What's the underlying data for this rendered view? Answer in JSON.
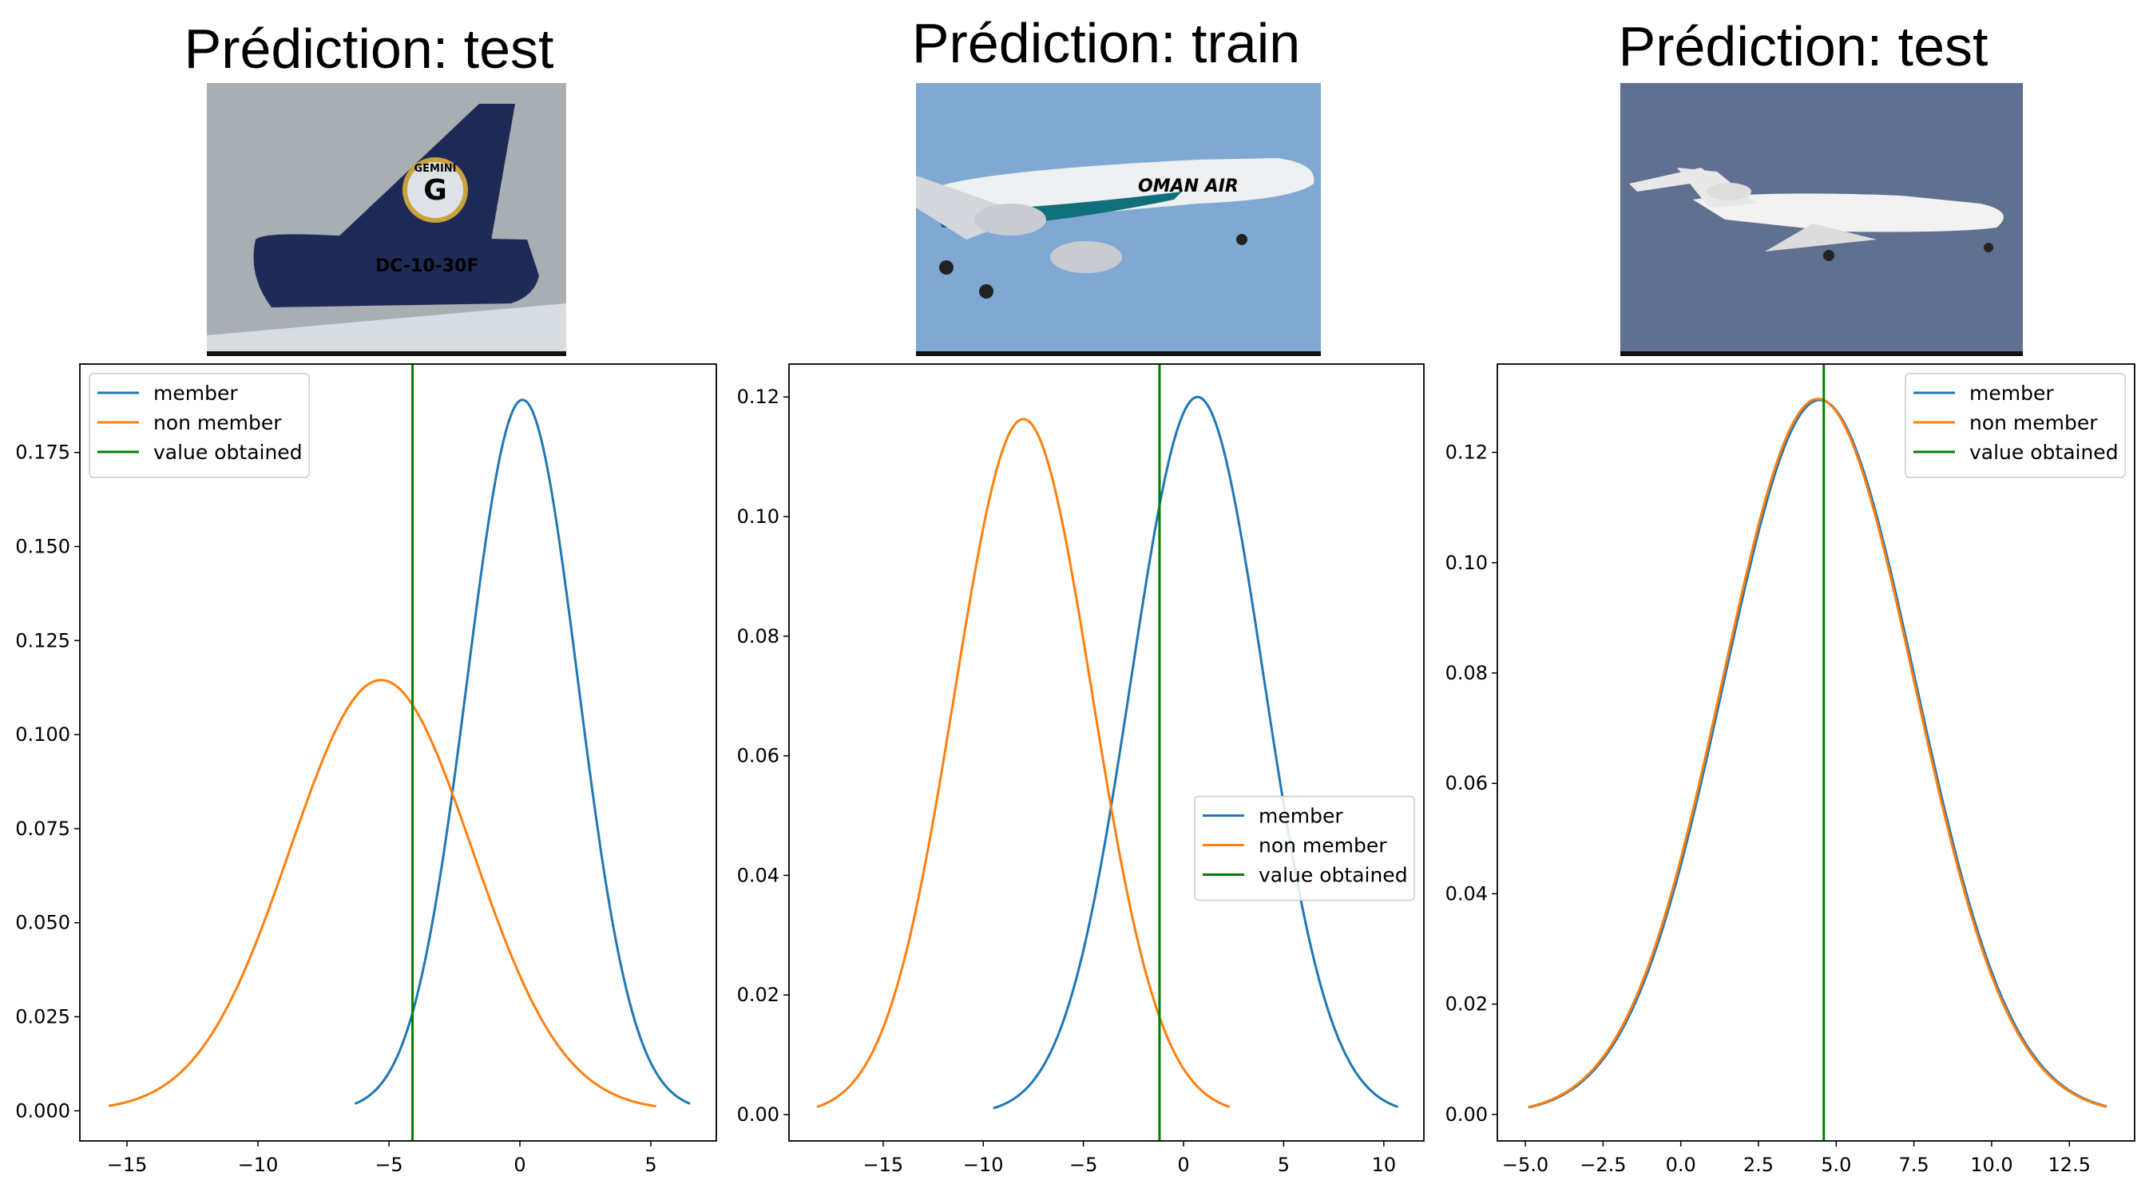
{
  "colors": {
    "member": "#1f77b4",
    "non_member": "#ff7f0e",
    "value_obtained": "#008000"
  },
  "panels": [
    {
      "title": "Prédiction: test",
      "image": {
        "scene": "grey-sky-cargo-tail",
        "logo_text": [
          "GEMINI",
          "DC-10-30F"
        ],
        "colors": {
          "bg": "#a9aeb3",
          "tail": "#1e2a55"
        }
      }
    },
    {
      "title": "Prédiction: train",
      "image": {
        "scene": "blue-sky-airliner",
        "logo_text": [
          "OMAN AIR"
        ],
        "colors": {
          "bg": "#7fa9d3",
          "body": "#eef0f2"
        }
      }
    },
    {
      "title": "Prédiction: test",
      "image": {
        "scene": "slate-sky-business-jet",
        "logo_text": [],
        "colors": {
          "bg": "#5f7090",
          "body": "#f2f2f2"
        }
      }
    }
  ],
  "chart_data": [
    {
      "type": "line",
      "legend_placement": "upper left",
      "xlim": [
        -16.8,
        7.5
      ],
      "ylim": [
        -0.008,
        0.1985
      ],
      "xticks": [
        -15,
        -10,
        -5,
        0,
        5
      ],
      "xtick_labels": [
        "−15",
        "−10",
        "−5",
        "0",
        "5"
      ],
      "yticks": [
        0,
        0.025,
        0.05,
        0.075,
        0.1,
        0.125,
        0.15,
        0.175
      ],
      "ytick_labels": [
        "0.000",
        "0.025",
        "0.050",
        "0.075",
        "0.100",
        "0.125",
        "0.150",
        "0.175"
      ],
      "series": [
        {
          "name": "member",
          "kind": "normal-pdf",
          "mean": 0.1,
          "std": 2.11,
          "x_range": [
            -6.3,
            6.5
          ],
          "peak": 0.189
        },
        {
          "name": "non member",
          "kind": "normal-pdf",
          "mean": -5.3,
          "std": 3.48,
          "x_range": [
            -15.7,
            5.2
          ],
          "peak": 0.1145
        },
        {
          "name": "value obtained",
          "kind": "vline",
          "x": -4.1
        }
      ]
    },
    {
      "type": "line",
      "legend_placement": "center right",
      "xlim": [
        -19.7,
        12.0
      ],
      "ylim": [
        -0.0044,
        0.1255
      ],
      "xticks": [
        -15,
        -10,
        -5,
        0,
        5,
        10
      ],
      "xtick_labels": [
        "−15",
        "−10",
        "−5",
        "0",
        "5",
        "10"
      ],
      "yticks": [
        0,
        0.02,
        0.04,
        0.06,
        0.08,
        0.1,
        0.12
      ],
      "ytick_labels": [
        "0.00",
        "0.02",
        "0.04",
        "0.06",
        "0.08",
        "0.10",
        "0.12"
      ],
      "series": [
        {
          "name": "member",
          "kind": "normal-pdf",
          "mean": 0.7,
          "std": 3.32,
          "x_range": [
            -9.5,
            10.7
          ],
          "peak": 0.12
        },
        {
          "name": "non member",
          "kind": "normal-pdf",
          "mean": -8.0,
          "std": 3.43,
          "x_range": [
            -18.3,
            2.3
          ],
          "peak": 0.1163
        },
        {
          "name": "value obtained",
          "kind": "vline",
          "x": -1.2
        }
      ]
    },
    {
      "type": "line",
      "legend_placement": "upper right",
      "xlim": [
        -5.9,
        14.6
      ],
      "ylim": [
        -0.0048,
        0.136
      ],
      "xticks": [
        -5,
        -2.5,
        0,
        2.5,
        5,
        7.5,
        10,
        12.5
      ],
      "xtick_labels": [
        "−5.0",
        "−2.5",
        "0.0",
        "2.5",
        "5.0",
        "7.5",
        "10.0",
        "12.5"
      ],
      "yticks": [
        0,
        0.02,
        0.04,
        0.06,
        0.08,
        0.1,
        0.12
      ],
      "ytick_labels": [
        "0.00",
        "0.02",
        "0.04",
        "0.06",
        "0.08",
        "0.10",
        "0.12"
      ],
      "series": [
        {
          "name": "member",
          "kind": "normal-pdf",
          "mean": 4.47,
          "std": 3.08,
          "x_range": [
            -4.9,
            13.7
          ],
          "peak": 0.1295
        },
        {
          "name": "non member",
          "kind": "normal-pdf",
          "mean": 4.42,
          "std": 3.08,
          "x_range": [
            -4.9,
            13.7
          ],
          "peak": 0.1297
        },
        {
          "name": "value obtained",
          "kind": "vline",
          "x": 4.6
        }
      ]
    }
  ]
}
